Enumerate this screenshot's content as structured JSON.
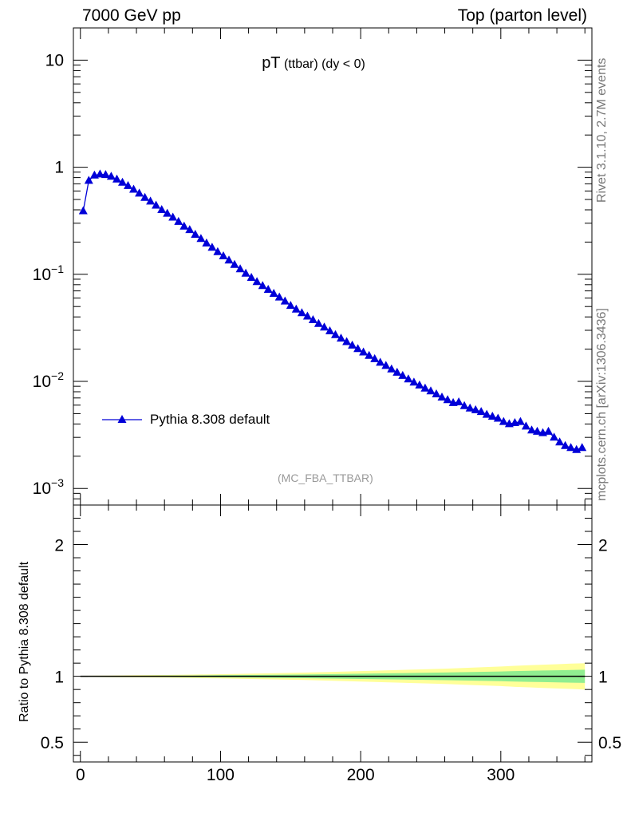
{
  "header": {
    "left": "7000 GeV pp",
    "right": "Top (parton level)"
  },
  "side": {
    "top": "Rivet 3.1.10,  2.7M events",
    "bottom": "mcplots.cern.ch [arXiv:1306.3436]"
  },
  "plot_title": {
    "main": "pT",
    "sub": "(ttbar) (dy < 0)"
  },
  "analysis_tag": "(MC_FBA_TTBAR)",
  "legend": {
    "label": "Pythia 8.308 default"
  },
  "ratio_ylabel": "Ratio to Pythia 8.308 default",
  "colors": {
    "series": "#0000d8",
    "band_inner": "#90ee90",
    "band_outer": "#ffff99",
    "axis": "#000000"
  },
  "chart_data": {
    "type": "line",
    "yscale": "log",
    "xlim": [
      -5,
      365
    ],
    "ylim": [
      0.0007,
      20
    ],
    "x_ticks": [
      "0",
      "100",
      "200",
      "300"
    ],
    "y_ticks": [
      "10^-3",
      "10^-2",
      "10^-1",
      "1",
      "10"
    ],
    "series": [
      {
        "name": "Pythia 8.308 default",
        "marker": "triangle",
        "x": [
          2,
          6,
          10,
          14,
          18,
          22,
          26,
          30,
          34,
          38,
          42,
          46,
          50,
          54,
          58,
          62,
          66,
          70,
          74,
          78,
          82,
          86,
          90,
          94,
          98,
          102,
          106,
          110,
          114,
          118,
          122,
          126,
          130,
          134,
          138,
          142,
          146,
          150,
          154,
          158,
          162,
          166,
          170,
          174,
          178,
          182,
          186,
          190,
          194,
          198,
          202,
          206,
          210,
          214,
          218,
          222,
          226,
          230,
          234,
          238,
          242,
          246,
          250,
          254,
          258,
          262,
          266,
          270,
          274,
          278,
          282,
          286,
          290,
          294,
          298,
          302,
          306,
          310,
          314,
          318,
          322,
          326,
          330,
          334,
          338,
          342,
          346,
          350,
          354,
          358
        ],
        "y": [
          0.39,
          0.75,
          0.84,
          0.86,
          0.85,
          0.82,
          0.77,
          0.72,
          0.67,
          0.62,
          0.57,
          0.52,
          0.48,
          0.44,
          0.4,
          0.37,
          0.34,
          0.31,
          0.28,
          0.26,
          0.235,
          0.215,
          0.195,
          0.178,
          0.162,
          0.148,
          0.135,
          0.123,
          0.112,
          0.102,
          0.093,
          0.085,
          0.078,
          0.072,
          0.066,
          0.061,
          0.056,
          0.051,
          0.047,
          0.0435,
          0.0405,
          0.0375,
          0.0345,
          0.032,
          0.0295,
          0.0272,
          0.0252,
          0.0234,
          0.0217,
          0.0201,
          0.0187,
          0.0174,
          0.0162,
          0.015,
          0.014,
          0.013,
          0.0121,
          0.0113,
          0.0105,
          0.0098,
          0.0092,
          0.0086,
          0.0081,
          0.0076,
          0.0071,
          0.0067,
          0.0063,
          0.0064,
          0.0059,
          0.0056,
          0.0054,
          0.0052,
          0.0049,
          0.0047,
          0.0045,
          0.0042,
          0.004,
          0.0041,
          0.0042,
          0.0038,
          0.0035,
          0.0034,
          0.0033,
          0.0034,
          0.003,
          0.0027,
          0.0025,
          0.0024,
          0.0023,
          0.0024
        ]
      }
    ],
    "ratio": {
      "ylim": [
        0.35,
        2.3
      ],
      "y_ticks": [
        "0.5",
        "1",
        "2"
      ],
      "x": [
        0,
        20,
        40,
        60,
        80,
        100,
        120,
        140,
        160,
        180,
        200,
        220,
        240,
        260,
        280,
        300,
        310,
        320,
        330,
        340,
        350,
        360
      ],
      "inner_half_width": [
        0.002,
        0.003,
        0.004,
        0.005,
        0.006,
        0.008,
        0.01,
        0.012,
        0.014,
        0.017,
        0.02,
        0.023,
        0.026,
        0.029,
        0.033,
        0.037,
        0.04,
        0.042,
        0.044,
        0.046,
        0.048,
        0.05
      ],
      "outer_half_width": [
        0.004,
        0.006,
        0.008,
        0.01,
        0.013,
        0.016,
        0.02,
        0.024,
        0.028,
        0.034,
        0.04,
        0.046,
        0.052,
        0.058,
        0.066,
        0.074,
        0.08,
        0.084,
        0.088,
        0.092,
        0.096,
        0.1
      ]
    }
  }
}
